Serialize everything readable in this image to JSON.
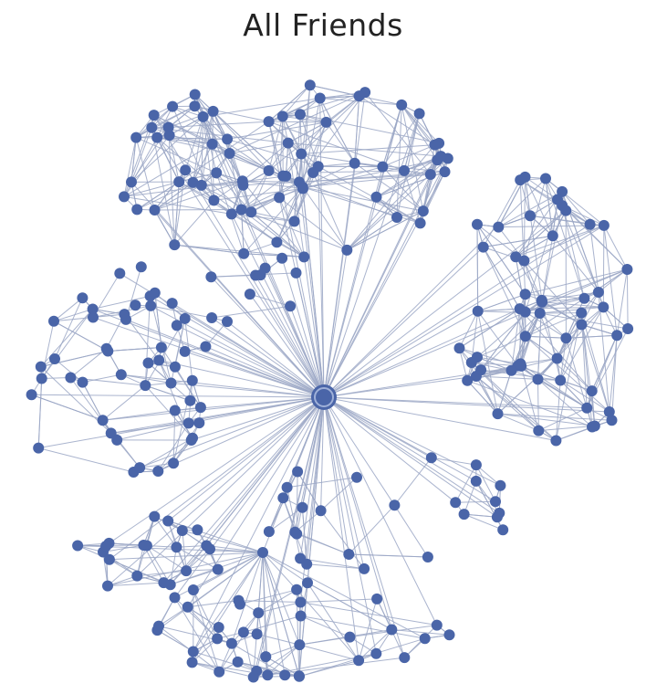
{
  "title": "All Friends"
}
